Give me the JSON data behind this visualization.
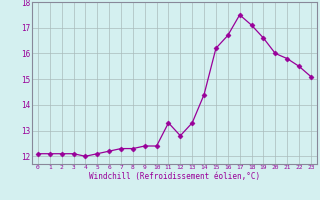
{
  "x": [
    0,
    1,
    2,
    3,
    4,
    5,
    6,
    7,
    8,
    9,
    10,
    11,
    12,
    13,
    14,
    15,
    16,
    17,
    18,
    19,
    20,
    21,
    22,
    23
  ],
  "y": [
    12.1,
    12.1,
    12.1,
    12.1,
    12.0,
    12.1,
    12.2,
    12.3,
    12.3,
    12.4,
    12.4,
    13.3,
    12.8,
    13.3,
    14.4,
    16.2,
    16.7,
    17.5,
    17.1,
    16.6,
    16.0,
    15.8,
    15.5,
    15.1
  ],
  "line_color": "#990099",
  "marker": "D",
  "marker_size": 2.5,
  "bg_color": "#d4f0f0",
  "grid_color": "#aabbbb",
  "xlabel": "Windchill (Refroidissement éolien,°C)",
  "xlabel_color": "#990099",
  "tick_color": "#990099",
  "ylim": [
    11.7,
    18.0
  ],
  "xlim": [
    -0.5,
    23.5
  ],
  "yticks": [
    12,
    13,
    14,
    15,
    16,
    17,
    18
  ],
  "xticks": [
    0,
    1,
    2,
    3,
    4,
    5,
    6,
    7,
    8,
    9,
    10,
    11,
    12,
    13,
    14,
    15,
    16,
    17,
    18,
    19,
    20,
    21,
    22,
    23
  ],
  "xtick_fontsize": 4.5,
  "ytick_fontsize": 5.5,
  "xlabel_fontsize": 5.5
}
